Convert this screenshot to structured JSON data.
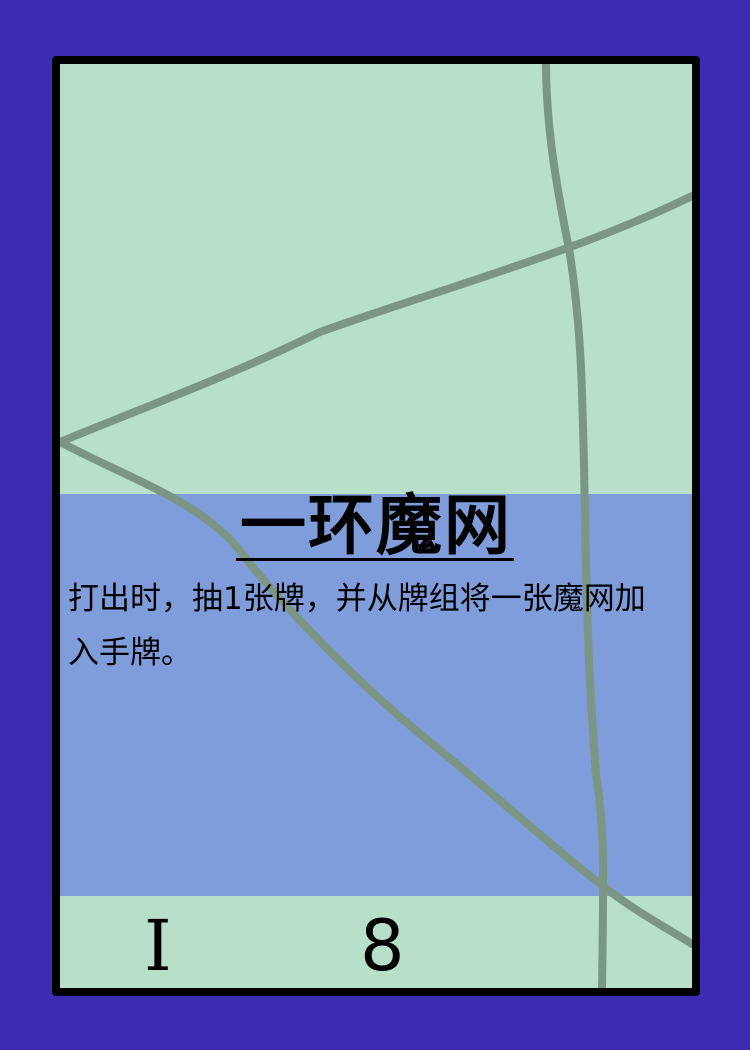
{
  "card": {
    "title": "一环魔网",
    "description": "打出时，抽1张牌，并从牌组将一张魔网加入手牌。",
    "footer_left": "I",
    "footer_right": "8",
    "colors": {
      "background": "#3d2bb3",
      "card_green": "#b7dfca",
      "card_blue": "#7f9cdb",
      "line": "#7c9685"
    }
  }
}
